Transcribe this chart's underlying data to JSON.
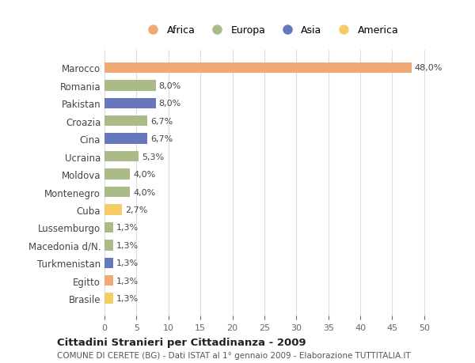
{
  "countries": [
    "Marocco",
    "Romania",
    "Pakistan",
    "Croazia",
    "Cina",
    "Ucraina",
    "Moldova",
    "Montenegro",
    "Cuba",
    "Lussemburgo",
    "Macedonia d/N.",
    "Turkmenistan",
    "Egitto",
    "Brasile"
  ],
  "values": [
    48.0,
    8.0,
    8.0,
    6.7,
    6.7,
    5.3,
    4.0,
    4.0,
    2.7,
    1.3,
    1.3,
    1.3,
    1.3,
    1.3
  ],
  "labels": [
    "48,0%",
    "8,0%",
    "8,0%",
    "6,7%",
    "6,7%",
    "5,3%",
    "4,0%",
    "4,0%",
    "2,7%",
    "1,3%",
    "1,3%",
    "1,3%",
    "1,3%",
    "1,3%"
  ],
  "continents": [
    "Africa",
    "Europa",
    "Asia",
    "Europa",
    "Asia",
    "Europa",
    "Europa",
    "Europa",
    "America",
    "Europa",
    "Europa",
    "Asia",
    "Africa",
    "America"
  ],
  "colors": {
    "Africa": "#F0A875",
    "Europa": "#AABB88",
    "Asia": "#6677BB",
    "America": "#F5CC66"
  },
  "legend_order": [
    "Africa",
    "Europa",
    "Asia",
    "America"
  ],
  "xlim": [
    0,
    52
  ],
  "xticks": [
    0,
    5,
    10,
    15,
    20,
    25,
    30,
    35,
    40,
    45,
    50
  ],
  "title": "Cittadini Stranieri per Cittadinanza - 2009",
  "subtitle": "COMUNE DI CERETE (BG) - Dati ISTAT al 1° gennaio 2009 - Elaborazione TUTTITALIA.IT",
  "background_color": "#ffffff",
  "grid_color": "#dddddd"
}
